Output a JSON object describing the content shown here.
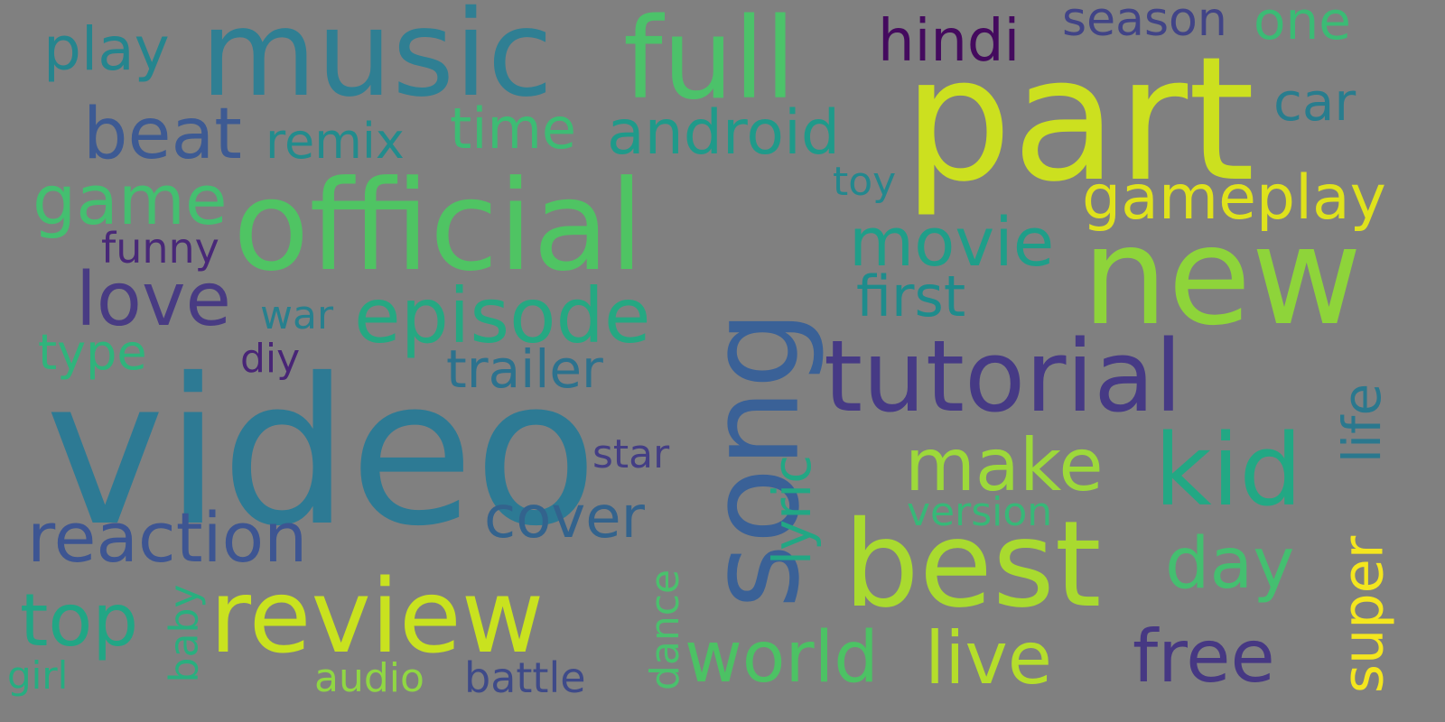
{
  "words": {
    "video": {
      "text": "video",
      "color": "#2d7a94"
    },
    "part": {
      "text": "part",
      "color": "#cce01f"
    },
    "official": {
      "text": "official",
      "color": "#4fc463"
    },
    "music": {
      "text": "music",
      "color": "#2f7f93"
    },
    "full": {
      "text": "full",
      "color": "#4cc26a"
    },
    "new": {
      "text": "new",
      "color": "#8ed43a"
    },
    "song": {
      "text": "song",
      "color": "#3a6197"
    },
    "tutorial": {
      "text": "tutorial",
      "color": "#463a85"
    },
    "review": {
      "text": "review",
      "color": "#c9e21f"
    },
    "best": {
      "text": "best",
      "color": "#a9da2f"
    },
    "kid": {
      "text": "kid",
      "color": "#22a884"
    },
    "episode": {
      "text": "episode",
      "color": "#25a882"
    },
    "reaction": {
      "text": "reaction",
      "color": "#3d5592"
    },
    "beat": {
      "text": "beat",
      "color": "#3d5a93"
    },
    "gameplay": {
      "text": "gameplay",
      "color": "#dfe21c"
    },
    "android": {
      "text": "android",
      "color": "#1f9a8a"
    },
    "movie": {
      "text": "movie",
      "color": "#1f9e89"
    },
    "love": {
      "text": "love",
      "color": "#483b83"
    },
    "game": {
      "text": "game",
      "color": "#44bf70"
    },
    "make": {
      "text": "make",
      "color": "#9dd93a"
    },
    "world": {
      "text": "world",
      "color": "#4cc264"
    },
    "live": {
      "text": "live",
      "color": "#b5de2b"
    },
    "free": {
      "text": "free",
      "color": "#463883"
    },
    "top": {
      "text": "top",
      "color": "#21a685"
    },
    "hindi": {
      "text": "hindi",
      "color": "#440a5e"
    },
    "cover": {
      "text": "cover",
      "color": "#33638d"
    },
    "day": {
      "text": "day",
      "color": "#44bf70"
    },
    "first": {
      "text": "first",
      "color": "#1e8c8c"
    },
    "time": {
      "text": "time",
      "color": "#3dbc74"
    },
    "remix": {
      "text": "remix",
      "color": "#228c8d"
    },
    "play": {
      "text": "play",
      "color": "#25858e"
    },
    "season": {
      "text": "season",
      "color": "#414487"
    },
    "one": {
      "text": "one",
      "color": "#3bbb75"
    },
    "car": {
      "text": "car",
      "color": "#287d8e"
    },
    "trailer": {
      "text": "trailer",
      "color": "#2c728e"
    },
    "lyric": {
      "text": "lyric",
      "color": "#22a784"
    },
    "life": {
      "text": "life",
      "color": "#2a788e"
    },
    "super": {
      "text": "super",
      "color": "#f4e61e"
    },
    "type": {
      "text": "type",
      "color": "#2fb47c"
    },
    "funny": {
      "text": "funny",
      "color": "#482878"
    },
    "war": {
      "text": "war",
      "color": "#27808e"
    },
    "diy": {
      "text": "diy",
      "color": "#482576"
    },
    "star": {
      "text": "star",
      "color": "#433e85"
    },
    "toy": {
      "text": "toy",
      "color": "#23888e"
    },
    "version": {
      "text": "version",
      "color": "#37b878"
    },
    "baby": {
      "text": "baby",
      "color": "#29af7f"
    },
    "girl": {
      "text": "girl",
      "color": "#26ad81"
    },
    "audio": {
      "text": "audio",
      "color": "#90d743"
    },
    "battle": {
      "text": "battle",
      "color": "#3e4a89"
    },
    "dance": {
      "text": "dance",
      "color": "#4ac16d"
    }
  }
}
